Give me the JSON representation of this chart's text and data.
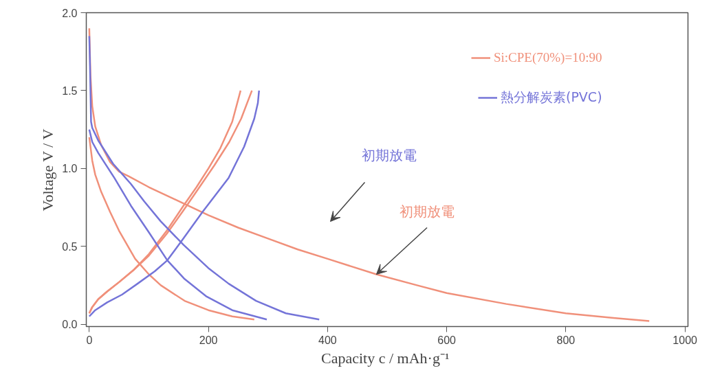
{
  "chart_data": {
    "type": "line",
    "xlabel": "Capacity c  / mAh·g⁻¹",
    "ylabel": "Voltage V / V",
    "xlim": [
      -5,
      1005
    ],
    "ylim": [
      -0.015,
      2.0
    ],
    "xticks": [
      0,
      200,
      400,
      600,
      800,
      1000
    ],
    "yticks": [
      {
        "value": 0,
        "label": "0.0"
      },
      {
        "value": 0.5,
        "label": "0.5"
      },
      {
        "value": 1,
        "label": "1.0"
      },
      {
        "value": 1.5,
        "label": "1.5"
      },
      {
        "value": 2,
        "label": "2.0"
      }
    ],
    "grid": false,
    "legend": "top right",
    "line_style": "solid",
    "marker": "none",
    "series": [
      {
        "name": "Si:CPE(70%)=10:90",
        "color": "#f0907a",
        "x": [
          0,
          2,
          5,
          10,
          20,
          35,
          50,
          66,
          100,
          150,
          200,
          250,
          300,
          350,
          400,
          482,
          550,
          600,
          700,
          800,
          880,
          940
        ],
        "values": [
          1.9,
          1.6,
          1.4,
          1.27,
          1.15,
          1.04,
          0.98,
          0.95,
          0.88,
          0.79,
          0.7,
          0.62,
          0.55,
          0.48,
          0.42,
          0.32,
          0.25,
          0.2,
          0.13,
          0.07,
          0.04,
          0.02
        ]
      },
      {
        "color": "#f0907a",
        "x": [
          0,
          5,
          10,
          20,
          35,
          50,
          77,
          100,
          120,
          160,
          200,
          240,
          277
        ],
        "values": [
          1.2,
          1.05,
          0.96,
          0.85,
          0.72,
          0.6,
          0.42,
          0.32,
          0.25,
          0.15,
          0.09,
          0.05,
          0.03
        ]
      },
      {
        "color": "#f0907a",
        "x": [
          0,
          5,
          15,
          30,
          50,
          75,
          100,
          130,
          158,
          180,
          200,
          220,
          240,
          254
        ],
        "values": [
          0.07,
          0.11,
          0.16,
          0.21,
          0.27,
          0.35,
          0.45,
          0.6,
          0.76,
          0.88,
          1.0,
          1.13,
          1.3,
          1.5
        ]
      },
      {
        "color": "#f0907a",
        "x": [
          0,
          5,
          15,
          30,
          50,
          75,
          100,
          130,
          158,
          185,
          210,
          235,
          255,
          273
        ],
        "values": [
          0.07,
          0.11,
          0.16,
          0.21,
          0.27,
          0.35,
          0.44,
          0.58,
          0.73,
          0.88,
          1.02,
          1.17,
          1.32,
          1.5
        ]
      },
      {
        "name": "熱分解炭素(PVC)",
        "color": "#7474d8",
        "x": [
          0,
          1,
          2,
          3,
          5,
          15,
          40,
          70,
          92,
          120,
          158,
          200,
          234,
          280,
          330,
          386
        ],
        "values": [
          1.85,
          1.7,
          1.5,
          1.3,
          1.26,
          1.18,
          1.03,
          0.9,
          0.79,
          0.66,
          0.51,
          0.36,
          0.26,
          0.15,
          0.07,
          0.03
        ]
      },
      {
        "color": "#7474d8",
        "x": [
          0,
          5,
          15,
          42,
          70,
          100,
          131,
          160,
          196,
          240,
          298
        ],
        "values": [
          1.25,
          1.17,
          1.1,
          0.94,
          0.76,
          0.59,
          0.41,
          0.29,
          0.18,
          0.09,
          0.03
        ]
      },
      {
        "color": "#7474d8",
        "x": [
          0,
          10,
          30,
          55,
          81,
          110,
          131,
          158,
          190,
          234,
          260,
          277,
          283,
          285
        ],
        "values": [
          0.05,
          0.09,
          0.14,
          0.19,
          0.26,
          0.34,
          0.41,
          0.55,
          0.72,
          0.94,
          1.14,
          1.32,
          1.42,
          1.5
        ]
      }
    ],
    "annotations": [
      "初期放電",
      {
        "text": "初期放電",
        "x": 482,
        "y": 0.32
      }
    ]
  }
}
